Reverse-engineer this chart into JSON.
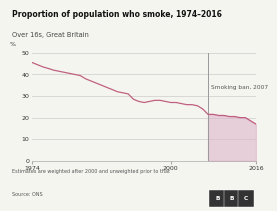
{
  "title": "Proportion of population who smoke, 1974–2016",
  "subtitle": "Over 16s, Great Britain",
  "ylabel": "%",
  "xlabel_ticks": [
    1974,
    2000,
    2016
  ],
  "ylim": [
    0,
    50
  ],
  "xlim": [
    1974,
    2016
  ],
  "yticks": [
    0,
    10,
    20,
    30,
    40,
    50
  ],
  "smoking_ban_year": 2007,
  "smoking_ban_label": "Smoking ban, 2007",
  "line_color": "#c06080",
  "fill_color": "#ddb0c8",
  "fill_alpha": 0.55,
  "vline_color": "#999999",
  "note_text": "Estimates are weighted after 2000 and unweighted prior to that",
  "source_text": "Source: ONS",
  "background_color": "#f5f5f0",
  "data": [
    [
      1974,
      45.5
    ],
    [
      1975,
      44.5
    ],
    [
      1976,
      43.5
    ],
    [
      1977,
      42.8
    ],
    [
      1978,
      42.0
    ],
    [
      1979,
      41.5
    ],
    [
      1980,
      41.0
    ],
    [
      1981,
      40.5
    ],
    [
      1982,
      40.0
    ],
    [
      1983,
      39.5
    ],
    [
      1984,
      38.0
    ],
    [
      1985,
      37.0
    ],
    [
      1986,
      36.0
    ],
    [
      1987,
      35.0
    ],
    [
      1988,
      34.0
    ],
    [
      1989,
      33.0
    ],
    [
      1990,
      32.0
    ],
    [
      1991,
      31.5
    ],
    [
      1992,
      31.0
    ],
    [
      1993,
      28.5
    ],
    [
      1994,
      27.5
    ],
    [
      1995,
      27.0
    ],
    [
      1996,
      27.5
    ],
    [
      1997,
      28.0
    ],
    [
      1998,
      28.0
    ],
    [
      1999,
      27.5
    ],
    [
      2000,
      27.0
    ],
    [
      2001,
      27.0
    ],
    [
      2002,
      26.5
    ],
    [
      2003,
      26.0
    ],
    [
      2004,
      26.0
    ],
    [
      2005,
      25.5
    ],
    [
      2006,
      24.0
    ],
    [
      2007,
      21.5
    ],
    [
      2008,
      21.5
    ],
    [
      2009,
      21.0
    ],
    [
      2010,
      21.0
    ],
    [
      2011,
      20.5
    ],
    [
      2012,
      20.5
    ],
    [
      2013,
      20.0
    ],
    [
      2014,
      20.0
    ],
    [
      2015,
      18.5
    ],
    [
      2016,
      17.0
    ]
  ]
}
